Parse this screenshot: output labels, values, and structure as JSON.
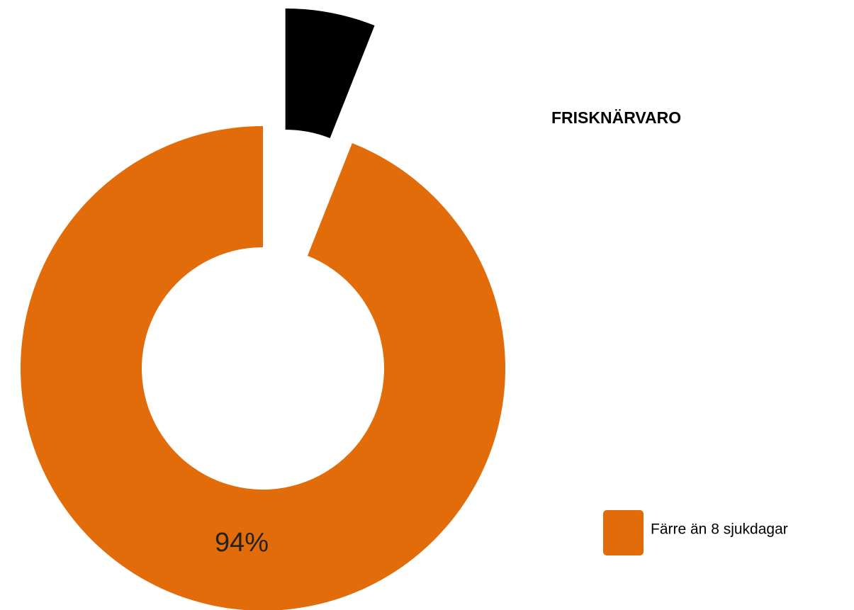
{
  "chart_data": {
    "type": "donut",
    "title": "FRISKNÄRVARO",
    "categories": [
      "Färre än 8 sjukdagar",
      null
    ],
    "values": [
      94,
      6
    ],
    "value_labels": [
      "94%",
      null
    ],
    "colors": [
      "#e36c0a",
      "#000000"
    ]
  }
}
